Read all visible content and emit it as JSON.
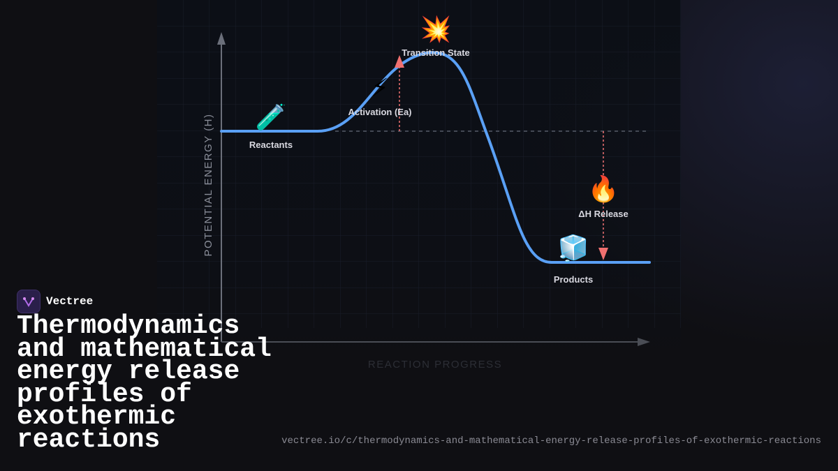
{
  "diagram": {
    "y_axis_label": "POTENTIAL ENERGY (H)",
    "x_axis_label": "REACTION PROGRESS",
    "nodes": [
      {
        "icon": "🧪",
        "label": "Reactants"
      },
      {
        "icon": "⚡",
        "label": "Activation (Ea)"
      },
      {
        "icon": "💥",
        "label": "Transition State"
      },
      {
        "icon": "🔥",
        "label": "ΔH Release"
      },
      {
        "icon": "🧊",
        "label": "Products"
      }
    ]
  },
  "brand": {
    "name": "Vectree"
  },
  "title": "Thermodynamics and mathematical energy release profiles of exothermic reactions",
  "url": "vectree.io/c/thermodynamics-and-mathematical-energy-release-profiles-of-exothermic-reactions"
}
